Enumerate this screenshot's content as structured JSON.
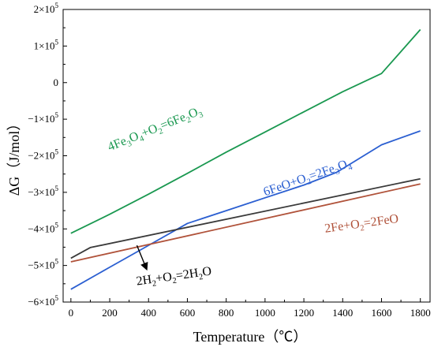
{
  "chart_data": {
    "type": "line",
    "xlabel": "Temperature（℃）",
    "ylabel": "ΔG（J/mol）",
    "xlim": [
      -40,
      1850
    ],
    "ylim": [
      -600000,
      200000
    ],
    "x_ticks": [
      0,
      200,
      400,
      600,
      800,
      1000,
      1200,
      1400,
      1600,
      1800
    ],
    "x_tick_labels": [
      "0",
      "200",
      "400",
      "600",
      "800",
      "1000",
      "1200",
      "1400",
      "1600",
      "1800"
    ],
    "y_ticks": [
      {
        "value": 200000,
        "coef": "2",
        "exp": "5"
      },
      {
        "value": 100000,
        "coef": "1",
        "exp": "5"
      },
      {
        "value": 0,
        "coef": "0",
        "exp": ""
      },
      {
        "value": -100000,
        "coef": "−1",
        "exp": "5"
      },
      {
        "value": -200000,
        "coef": "−2",
        "exp": "5"
      },
      {
        "value": -300000,
        "coef": "−3",
        "exp": "5"
      },
      {
        "value": -400000,
        "coef": "−4",
        "exp": "5"
      },
      {
        "value": -500000,
        "coef": "−5",
        "exp": "5"
      },
      {
        "value": -600000,
        "coef": "−6",
        "exp": "5"
      }
    ],
    "grid": false,
    "series": [
      {
        "name": "4Fe3O4+O2=6Fe2O3",
        "color": "#1a9850",
        "x": [
          0,
          200,
          400,
          600,
          800,
          1000,
          1200,
          1400,
          1600,
          1800
        ],
        "y": [
          -412000,
          -360000,
          -305000,
          -248000,
          -190000,
          -135000,
          -80000,
          -25000,
          25000,
          145000
        ]
      },
      {
        "name": "6FeO+O2=2Fe3O4",
        "color": "#2b5fd1",
        "x": [
          0,
          200,
          400,
          600,
          800,
          1000,
          1200,
          1370,
          1600,
          1800
        ],
        "y": [
          -565000,
          -505000,
          -445000,
          -385000,
          -350000,
          -315000,
          -280000,
          -245000,
          -170000,
          -132000
        ]
      },
      {
        "name": "2Fe+O2=2FeO",
        "color": "#b0523a",
        "x": [
          0,
          1800
        ],
        "y": [
          -490000,
          -277000
        ]
      },
      {
        "name": "2H2+O2=2H2O",
        "color": "#3a3a3a",
        "x": [
          0,
          100,
          1800
        ],
        "y": [
          -480000,
          -451000,
          -263000
        ]
      }
    ],
    "annotations": [
      {
        "id": "fe3o4-fe2o3",
        "color": "#1a9850",
        "parts": [
          [
            "4Fe",
            false
          ],
          [
            "3",
            true
          ],
          [
            "O",
            false
          ],
          [
            "4",
            true
          ],
          [
            "+O",
            false
          ],
          [
            "2",
            true
          ],
          [
            "=6Fe",
            false
          ],
          [
            "2",
            true
          ],
          [
            "O",
            false
          ],
          [
            "3",
            true
          ]
        ],
        "x": 200,
        "y": -187000,
        "angle": -22
      },
      {
        "id": "feo-fe3o4",
        "color": "#2b5fd1",
        "parts": [
          [
            "6FeO+O",
            false
          ],
          [
            "2",
            true
          ],
          [
            "=2Fe",
            false
          ],
          [
            "3",
            true
          ],
          [
            "O",
            false
          ],
          [
            "4",
            true
          ]
        ],
        "x": 1000,
        "y": -310000,
        "angle": -19
      },
      {
        "id": "fe-feo",
        "color": "#b0523a",
        "parts": [
          [
            "2Fe+O",
            false
          ],
          [
            "2",
            true
          ],
          [
            "=2FeO",
            false
          ]
        ],
        "x": 1310,
        "y": -410000,
        "angle": -8
      },
      {
        "id": "h2-h2o",
        "color": "#000000",
        "parts": [
          [
            "2H",
            false
          ],
          [
            "2",
            true
          ],
          [
            "+O",
            false
          ],
          [
            "2",
            true
          ],
          [
            "=2H",
            false
          ],
          [
            "2",
            true
          ],
          [
            "O",
            false
          ]
        ],
        "x": 340,
        "y": -554000,
        "angle": -8
      }
    ],
    "arrow": {
      "color": "#000000",
      "from": [
        340,
        -445000
      ],
      "to": [
        390,
        -510000
      ]
    }
  }
}
